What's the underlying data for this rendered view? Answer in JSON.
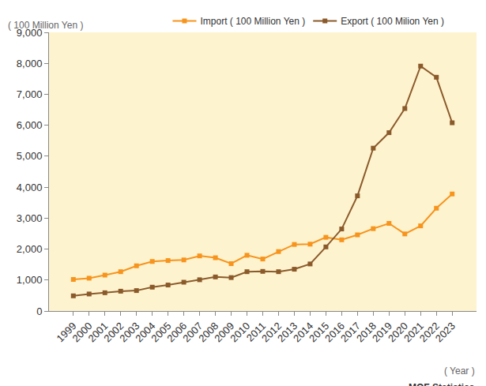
{
  "chart_data": {
    "type": "line",
    "y_label": "( 100 Million Yen )",
    "x_label": "( Year )",
    "source": "MOF Statistics",
    "categories": [
      "1999",
      "2000",
      "2001",
      "2002",
      "2003",
      "2004",
      "2005",
      "2006",
      "2007",
      "2008",
      "2009",
      "2010",
      "2011",
      "2012",
      "2013",
      "2014",
      "2015",
      "2016",
      "2017",
      "2018",
      "2019",
      "2020",
      "2021",
      "2022",
      "2023"
    ],
    "series": [
      {
        "name": "Import ( 100 Million Yen )",
        "color": "#f7941d",
        "marker": "square",
        "values": [
          1020,
          1060,
          1160,
          1270,
          1460,
          1600,
          1630,
          1650,
          1780,
          1720,
          1530,
          1800,
          1680,
          1920,
          2150,
          2160,
          2380,
          2300,
          2460,
          2660,
          2830,
          2490,
          2750,
          3320,
          3780
        ]
      },
      {
        "name": "Export ( 100 Milion Yen )",
        "color": "#8b5a2b",
        "marker": "square",
        "values": [
          490,
          550,
          590,
          640,
          660,
          770,
          840,
          930,
          1010,
          1100,
          1080,
          1270,
          1280,
          1270,
          1350,
          1520,
          2070,
          2650,
          3720,
          5260,
          5760,
          6540,
          7910,
          7550,
          6080
        ]
      }
    ],
    "ylim": [
      0,
      9000
    ],
    "yticks": [
      0,
      {
        "value": 1000,
        "label": "1,000"
      },
      {
        "value": 2000,
        "label": "2,000"
      },
      {
        "value": 3000,
        "label": "3,000"
      },
      {
        "value": 4000,
        "label": "4,000"
      },
      {
        "value": 5000,
        "label": "5,000"
      },
      {
        "value": 6000,
        "label": "6,000"
      },
      {
        "value": 7000,
        "label": "7,000"
      },
      {
        "value": 8000,
        "label": "8,000"
      },
      {
        "value": 9000,
        "label": "9,000"
      }
    ],
    "grid": false,
    "legend": "top"
  }
}
